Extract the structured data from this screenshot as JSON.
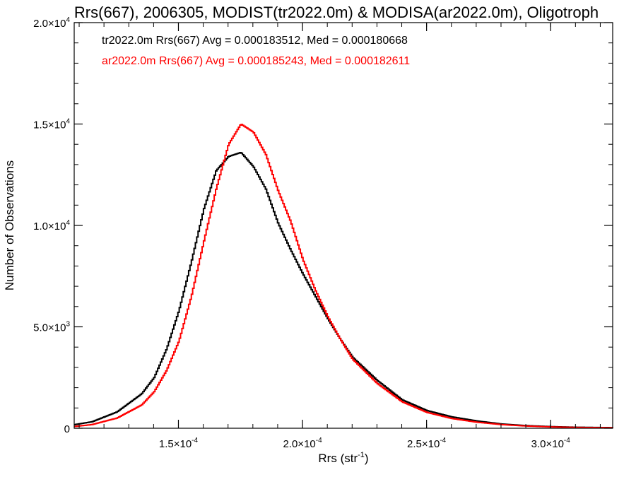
{
  "chart_data": {
    "type": "line",
    "title": "Rrs(667), 2006305, MODIST(tr2022.0m) & MODISA(ar2022.0m), Oligotroph",
    "xlabel": {
      "base": "Rrs (str",
      "sup": "-1",
      "tail": ")"
    },
    "ylabel": "Number of Observations",
    "xlim": [
      0.000108,
      0.000325
    ],
    "ylim": [
      0,
      20000
    ],
    "x_ticks": [
      {
        "value": 0.00015,
        "mant": "1.5×10",
        "exp": "-4"
      },
      {
        "value": 0.0002,
        "mant": "2.0×10",
        "exp": "-4"
      },
      {
        "value": 0.00025,
        "mant": "2.5×10",
        "exp": "-4"
      },
      {
        "value": 0.0003,
        "mant": "3.0×10",
        "exp": "-4"
      }
    ],
    "y_ticks": [
      {
        "value": 0,
        "mant": "0",
        "exp": ""
      },
      {
        "value": 5000,
        "mant": "5.0×10",
        "exp": "3"
      },
      {
        "value": 10000,
        "mant": "1.0×10",
        "exp": "4"
      },
      {
        "value": 15000,
        "mant": "1.5×10",
        "exp": "4"
      },
      {
        "value": 20000,
        "mant": "2.0×10",
        "exp": "4"
      }
    ],
    "grid": false,
    "legend_position": "top-left",
    "series": [
      {
        "name": "tr2022.0m Rrs(667) Avg = 0.000183512, Med = 0.000180668",
        "color": "#000000",
        "x": [
          0.000108,
          0.000115,
          0.000125,
          0.000135,
          0.00014,
          0.000145,
          0.00015,
          0.000155,
          0.00016,
          0.000165,
          0.00017,
          0.000175,
          0.00018,
          0.000185,
          0.00019,
          0.000195,
          0.0002,
          0.000205,
          0.00021,
          0.000215,
          0.00022,
          0.00023,
          0.00024,
          0.00025,
          0.00026,
          0.00027,
          0.00028,
          0.00029,
          0.0003,
          0.00031,
          0.000325
        ],
        "values": [
          180,
          320,
          800,
          1700,
          2500,
          3900,
          5800,
          8200,
          10800,
          12700,
          13400,
          13600,
          12900,
          11800,
          10100,
          8800,
          7600,
          6500,
          5400,
          4400,
          3500,
          2350,
          1400,
          870,
          560,
          360,
          210,
          130,
          80,
          50,
          30
        ]
      },
      {
        "name": "ar2022.0m Rrs(667) Avg = 0.000185243, Med = 0.000182611",
        "color": "#ff0000",
        "x": [
          0.000108,
          0.000115,
          0.000125,
          0.000135,
          0.00014,
          0.000145,
          0.00015,
          0.000155,
          0.00016,
          0.000165,
          0.00017,
          0.000175,
          0.00018,
          0.000185,
          0.00019,
          0.000195,
          0.0002,
          0.000205,
          0.00021,
          0.000215,
          0.00022,
          0.00023,
          0.00024,
          0.00025,
          0.00026,
          0.00027,
          0.00028,
          0.00029,
          0.0003,
          0.00031,
          0.000325
        ],
        "values": [
          90,
          180,
          500,
          1150,
          1800,
          2850,
          4300,
          6500,
          9200,
          11800,
          14000,
          15000,
          14600,
          13500,
          11700,
          10200,
          8300,
          6800,
          5500,
          4400,
          3400,
          2200,
          1300,
          780,
          480,
          300,
          180,
          110,
          65,
          40,
          25
        ]
      }
    ]
  }
}
